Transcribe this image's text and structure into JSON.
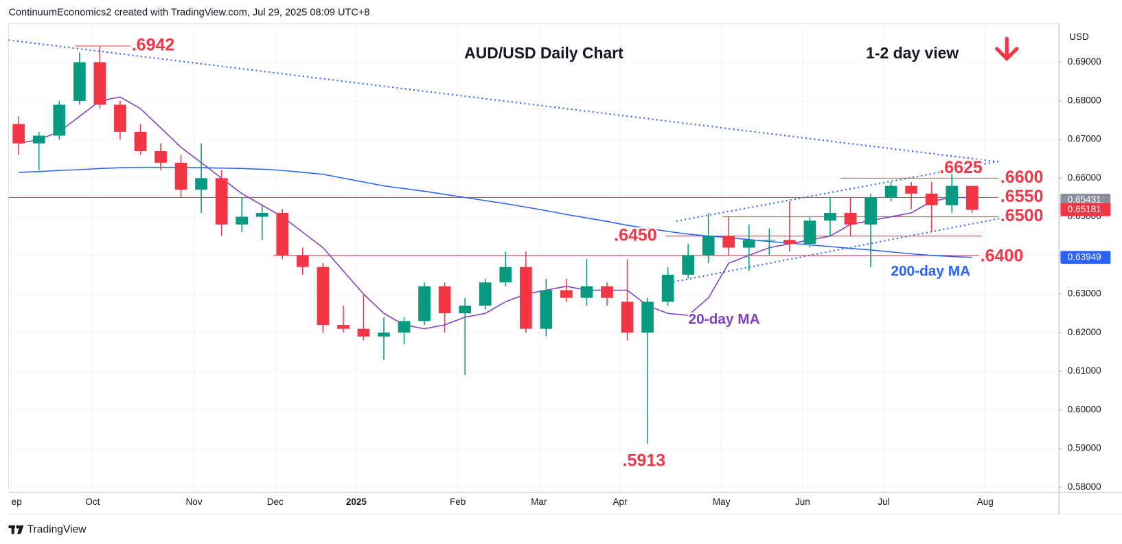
{
  "chart_data": {
    "type": "candlestick",
    "header": "ContinuumEconomics2 created with TradingView.com, Jul 29, 2025 08:09 UTC+8",
    "title": "AUD/USD Daily Chart",
    "subtitle": "1-2 day view",
    "currency": "USD",
    "footer": "TradingView",
    "up_color": "#089981",
    "down_color": "#f23645",
    "categories": [
      "ep",
      null,
      null,
      null,
      "Oct",
      null,
      null,
      null,
      null,
      "Nov",
      null,
      null,
      null,
      "Dec",
      null,
      null,
      null,
      "2025",
      null,
      null,
      null,
      null,
      "Feb",
      null,
      null,
      null,
      "Mar",
      null,
      null,
      null,
      "Apr",
      null,
      null,
      null,
      null,
      "May",
      null,
      null,
      null,
      "Jun",
      null,
      null,
      null,
      "Jul",
      null,
      null,
      null,
      null,
      "Aug"
    ],
    "open": [
      0.674,
      0.669,
      0.671,
      0.68,
      0.69,
      0.679,
      0.672,
      0.667,
      0.664,
      0.657,
      0.66,
      0.648,
      0.65,
      0.651,
      0.64,
      0.637,
      0.622,
      0.621,
      0.619,
      0.62,
      0.623,
      0.632,
      0.625,
      0.627,
      0.633,
      0.637,
      0.621,
      0.631,
      0.629,
      0.632,
      0.628,
      0.62,
      0.628,
      0.635,
      0.64,
      0.645,
      0.642,
      0.644,
      0.644,
      0.643,
      0.649,
      0.651,
      0.648,
      0.655,
      0.658,
      0.656,
      0.653,
      0.658,
      null
    ],
    "high": [
      0.676,
      0.672,
      0.68,
      0.6925,
      0.6942,
      0.68,
      0.674,
      0.669,
      0.666,
      0.669,
      0.662,
      0.655,
      0.653,
      0.652,
      0.642,
      0.638,
      0.627,
      0.63,
      0.624,
      0.624,
      0.633,
      0.633,
      0.629,
      0.634,
      0.641,
      0.641,
      0.634,
      0.634,
      0.639,
      0.633,
      0.639,
      0.629,
      0.637,
      0.643,
      0.651,
      0.65,
      0.648,
      0.647,
      0.654,
      0.65,
      0.655,
      0.655,
      0.656,
      0.659,
      0.659,
      0.659,
      0.6625,
      0.658,
      null
    ],
    "low": [
      0.666,
      0.662,
      0.67,
      0.679,
      0.678,
      0.67,
      0.666,
      0.662,
      0.655,
      0.651,
      0.645,
      0.646,
      0.644,
      0.639,
      0.635,
      0.62,
      0.62,
      0.618,
      0.613,
      0.617,
      0.622,
      0.62,
      0.609,
      0.626,
      0.632,
      0.62,
      0.619,
      0.628,
      0.627,
      0.627,
      0.618,
      0.5913,
      0.627,
      0.634,
      0.638,
      0.64,
      0.636,
      0.64,
      0.641,
      0.642,
      0.645,
      0.645,
      0.637,
      0.654,
      0.652,
      0.646,
      0.651,
      0.651,
      null
    ],
    "close": [
      0.669,
      0.671,
      0.679,
      0.69,
      0.679,
      0.672,
      0.667,
      0.664,
      0.657,
      0.66,
      0.648,
      0.65,
      0.651,
      0.64,
      0.637,
      0.622,
      0.621,
      0.619,
      0.62,
      0.623,
      0.632,
      0.625,
      0.627,
      0.633,
      0.637,
      0.621,
      0.631,
      0.629,
      0.632,
      0.629,
      0.62,
      0.628,
      0.635,
      0.64,
      0.645,
      0.642,
      0.644,
      0.644,
      0.643,
      0.649,
      0.651,
      0.648,
      0.655,
      0.658,
      0.656,
      0.653,
      0.658,
      0.6518,
      null
    ],
    "series": [
      {
        "name": "20-day MA",
        "color": "#7e3fc0",
        "values": [
          0.669,
          0.67,
          0.672,
          0.676,
          0.68,
          0.681,
          0.678,
          0.673,
          0.668,
          0.664,
          0.66,
          0.656,
          0.653,
          0.65,
          0.646,
          0.642,
          0.636,
          0.63,
          0.625,
          0.622,
          0.621,
          0.622,
          0.624,
          0.625,
          0.628,
          0.63,
          0.631,
          0.632,
          0.631,
          0.631,
          0.631,
          0.627,
          0.625,
          0.6245,
          0.629,
          0.638,
          0.64,
          0.642,
          0.643,
          0.644,
          0.645,
          0.648,
          0.649,
          0.65,
          0.651,
          0.654,
          0.655,
          0.655,
          null
        ]
      },
      {
        "name": "200-day MA",
        "color": "#2962ff",
        "values": [
          0.6615,
          0.6617,
          0.662,
          0.6622,
          0.6625,
          0.6627,
          0.6628,
          0.6628,
          0.6628,
          0.6627,
          0.6626,
          0.6625,
          0.6623,
          0.662,
          0.6615,
          0.661,
          0.66,
          0.659,
          0.658,
          0.6573,
          0.6566,
          0.6558,
          0.655,
          0.6542,
          0.6534,
          0.6525,
          0.6516,
          0.6506,
          0.6497,
          0.6488,
          0.6478,
          0.647,
          0.6462,
          0.6455,
          0.645,
          0.6446,
          0.6441,
          0.6436,
          0.6432,
          0.6427,
          0.6423,
          0.6418,
          0.6414,
          0.6409,
          0.6404,
          0.64,
          0.6397,
          0.6395,
          null
        ]
      }
    ],
    "levels": [
      {
        "value": 0.6942,
        "label": ".6942"
      },
      {
        "value": 0.6625,
        "label": ".6625"
      },
      {
        "value": 0.66,
        "label": ".6600"
      },
      {
        "value": 0.655,
        "label": ".6550"
      },
      {
        "value": 0.65,
        "label": ".6500"
      },
      {
        "value": 0.645,
        "label": ".6450"
      },
      {
        "value": 0.64,
        "label": ".6400"
      },
      {
        "value": 0.5913,
        "label": ".5913"
      }
    ],
    "level_color": "#f23645",
    "price_tags": [
      {
        "value": 0.65431,
        "label": "0.65431",
        "color": "#8a8f9c"
      },
      {
        "value": 0.65181,
        "label": "0.65181",
        "color": "#f23645"
      },
      {
        "value": 0.63949,
        "label": "0.63949",
        "color": "#2962ff"
      }
    ],
    "ylim": [
      0.579,
      0.7
    ],
    "yticks": [
      {
        "value": 0.58,
        "label": "0.58000"
      },
      {
        "value": 0.59,
        "label": "0.59000"
      },
      {
        "value": 0.6,
        "label": "0.60000"
      },
      {
        "value": 0.61,
        "label": "0.61000"
      },
      {
        "value": 0.62,
        "label": "0.62000"
      },
      {
        "value": 0.63,
        "label": "0.63000"
      },
      {
        "value": 0.64,
        "label": "0.64000"
      },
      {
        "value": 0.65,
        "label": "0.65000"
      },
      {
        "value": 0.66,
        "label": "0.66000"
      },
      {
        "value": 0.67,
        "label": "0.67000"
      },
      {
        "value": 0.68,
        "label": "0.68000"
      },
      {
        "value": 0.69,
        "label": "0.69000"
      }
    ],
    "grid": true
  }
}
